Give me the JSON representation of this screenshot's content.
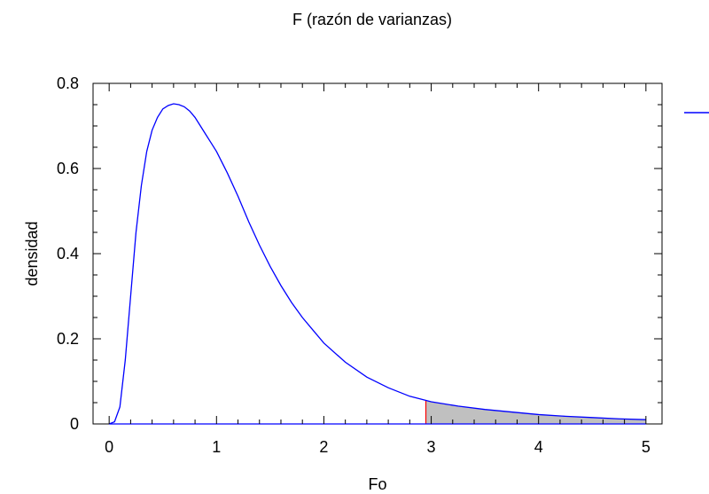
{
  "chart_data": {
    "type": "area",
    "title": "F (razón de varianzas)",
    "xlabel": "Fo",
    "ylabel": "densidad",
    "xlim": [
      0,
      5
    ],
    "ylim": [
      0,
      0.8
    ],
    "x_ticks": [
      0,
      1,
      2,
      3,
      4,
      5
    ],
    "y_ticks": [
      0,
      0.2,
      0.4,
      0.6,
      0.8
    ],
    "x_tick_labels": [
      "0",
      "1",
      "2",
      "3",
      "4",
      "5"
    ],
    "y_tick_labels": [
      "0",
      "0.2",
      "0.4",
      "0.6",
      "0.8"
    ],
    "grid": false,
    "legend": "top-right",
    "series": [
      {
        "color": "#0000ff",
        "x": [
          0,
          0.05,
          0.1,
          0.15,
          0.2,
          0.25,
          0.3,
          0.35,
          0.4,
          0.45,
          0.5,
          0.55,
          0.6,
          0.65,
          0.7,
          0.75,
          0.8,
          0.85,
          0.9,
          0.95,
          1.0,
          1.1,
          1.2,
          1.3,
          1.4,
          1.5,
          1.6,
          1.7,
          1.8,
          1.9,
          2.0,
          2.2,
          2.4,
          2.6,
          2.8,
          3.0,
          3.25,
          3.5,
          3.75,
          4.0,
          4.25,
          4.5,
          4.75,
          5.0
        ],
        "y": [
          0,
          0.005,
          0.04,
          0.15,
          0.3,
          0.45,
          0.56,
          0.64,
          0.69,
          0.72,
          0.74,
          0.748,
          0.752,
          0.75,
          0.745,
          0.735,
          0.72,
          0.7,
          0.68,
          0.66,
          0.64,
          0.59,
          0.535,
          0.475,
          0.42,
          0.37,
          0.325,
          0.285,
          0.25,
          0.22,
          0.19,
          0.145,
          0.11,
          0.085,
          0.065,
          0.052,
          0.042,
          0.034,
          0.028,
          0.022,
          0.018,
          0.015,
          0.012,
          0.01
        ]
      }
    ],
    "shaded_region": {
      "x_start": 2.95,
      "x_end": 5,
      "fill": "#c0c0c0",
      "marker_color": "#ff0000"
    },
    "colors": {
      "curve": "#0000ff",
      "baseline": "#0000ff",
      "shade": "#c0c0c0",
      "critical_line": "#ff0000"
    }
  }
}
